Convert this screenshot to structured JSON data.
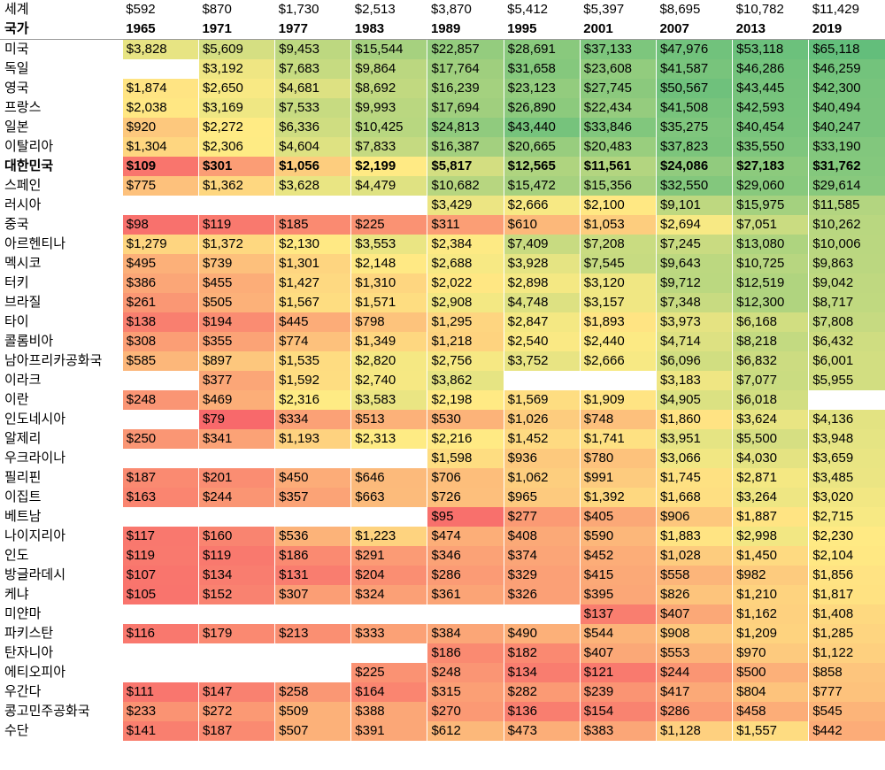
{
  "chart_data": {
    "type": "table",
    "title": "",
    "world_label": "세계",
    "country_header": "국가",
    "years": [
      "1965",
      "1971",
      "1977",
      "1983",
      "1989",
      "1995",
      "2001",
      "2007",
      "2013",
      "2019"
    ],
    "world": [
      "$592",
      "$870",
      "$1,730",
      "$2,513",
      "$3,870",
      "$5,412",
      "$5,397",
      "$8,695",
      "$10,782",
      "$11,429"
    ],
    "highlight_country": "대한민국",
    "rows": [
      {
        "country": "미국",
        "values": [
          3828,
          5609,
          9453,
          15544,
          22857,
          28691,
          37133,
          47976,
          53118,
          65118
        ]
      },
      {
        "country": "독일",
        "values": [
          null,
          3192,
          7683,
          9864,
          17764,
          31658,
          23608,
          41587,
          46286,
          46259
        ]
      },
      {
        "country": "영국",
        "values": [
          1874,
          2650,
          4681,
          8692,
          16239,
          23123,
          27745,
          50567,
          43445,
          42300
        ]
      },
      {
        "country": "프랑스",
        "values": [
          2038,
          3169,
          7533,
          9993,
          17694,
          26890,
          22434,
          41508,
          42593,
          40494
        ]
      },
      {
        "country": "일본",
        "values": [
          920,
          2272,
          6336,
          10425,
          24813,
          43440,
          33846,
          35275,
          40454,
          40247
        ]
      },
      {
        "country": "이탈리아",
        "values": [
          1304,
          2306,
          4604,
          7833,
          16387,
          20665,
          20483,
          37823,
          35550,
          33190
        ]
      },
      {
        "country": "대한민국",
        "values": [
          109,
          301,
          1056,
          2199,
          5817,
          12565,
          11561,
          24086,
          27183,
          31762
        ]
      },
      {
        "country": "스페인",
        "values": [
          775,
          1362,
          3628,
          4479,
          10682,
          15472,
          15356,
          32550,
          29060,
          29614
        ]
      },
      {
        "country": "러시아",
        "values": [
          null,
          null,
          null,
          null,
          3429,
          2666,
          2100,
          9101,
          15975,
          11585
        ]
      },
      {
        "country": "중국",
        "values": [
          98,
          119,
          185,
          225,
          311,
          610,
          1053,
          2694,
          7051,
          10262
        ]
      },
      {
        "country": "아르헨티나",
        "values": [
          1279,
          1372,
          2130,
          3553,
          2384,
          7409,
          7208,
          7245,
          13080,
          10006
        ]
      },
      {
        "country": "멕시코",
        "values": [
          495,
          739,
          1301,
          2148,
          2688,
          3928,
          7545,
          9643,
          10725,
          9863
        ]
      },
      {
        "country": "터키",
        "values": [
          386,
          455,
          1427,
          1310,
          2022,
          2898,
          3120,
          9712,
          12519,
          9042
        ]
      },
      {
        "country": "브라질",
        "values": [
          261,
          505,
          1567,
          1571,
          2908,
          4748,
          3157,
          7348,
          12300,
          8717
        ]
      },
      {
        "country": "타이",
        "values": [
          138,
          194,
          445,
          798,
          1295,
          2847,
          1893,
          3973,
          6168,
          7808
        ]
      },
      {
        "country": "콜롬비아",
        "values": [
          308,
          355,
          774,
          1349,
          1218,
          2540,
          2440,
          4714,
          8218,
          6432
        ]
      },
      {
        "country": "남아프리카공화국",
        "values": [
          585,
          897,
          1535,
          2820,
          2756,
          3752,
          2666,
          6096,
          6832,
          6001
        ]
      },
      {
        "country": "이라크",
        "values": [
          null,
          377,
          1592,
          2740,
          3862,
          null,
          null,
          3183,
          7077,
          5955
        ]
      },
      {
        "country": "이란",
        "values": [
          248,
          469,
          2316,
          3583,
          2198,
          1569,
          1909,
          4905,
          6018,
          null
        ]
      },
      {
        "country": "인도네시아",
        "values": [
          null,
          79,
          334,
          513,
          530,
          1026,
          748,
          1860,
          3624,
          4136
        ]
      },
      {
        "country": "알제리",
        "values": [
          250,
          341,
          1193,
          2313,
          2216,
          1452,
          1741,
          3951,
          5500,
          3948
        ]
      },
      {
        "country": "우크라이나",
        "values": [
          null,
          null,
          null,
          null,
          1598,
          936,
          780,
          3066,
          4030,
          3659
        ]
      },
      {
        "country": "필리핀",
        "values": [
          187,
          201,
          450,
          646,
          706,
          1062,
          991,
          1745,
          2871,
          3485
        ]
      },
      {
        "country": "이집트",
        "values": [
          163,
          244,
          357,
          663,
          726,
          965,
          1392,
          1668,
          3264,
          3020
        ]
      },
      {
        "country": "베트남",
        "values": [
          null,
          null,
          null,
          null,
          95,
          277,
          405,
          906,
          1887,
          2715
        ]
      },
      {
        "country": "나이지리아",
        "values": [
          117,
          160,
          536,
          1223,
          474,
          408,
          590,
          1883,
          2998,
          2230
        ]
      },
      {
        "country": "인도",
        "values": [
          119,
          119,
          186,
          291,
          346,
          374,
          452,
          1028,
          1450,
          2104
        ]
      },
      {
        "country": "방글라데시",
        "values": [
          107,
          134,
          131,
          204,
          286,
          329,
          415,
          558,
          982,
          1856
        ]
      },
      {
        "country": "케냐",
        "values": [
          105,
          152,
          307,
          324,
          361,
          326,
          395,
          826,
          1210,
          1817
        ]
      },
      {
        "country": "미얀마",
        "values": [
          null,
          null,
          null,
          null,
          null,
          null,
          137,
          407,
          1162,
          1408
        ]
      },
      {
        "country": "파키스탄",
        "values": [
          116,
          179,
          213,
          333,
          384,
          490,
          544,
          908,
          1209,
          1285
        ]
      },
      {
        "country": "탄자니아",
        "values": [
          null,
          null,
          null,
          null,
          186,
          182,
          407,
          553,
          970,
          1122
        ]
      },
      {
        "country": "에티오피아",
        "values": [
          null,
          null,
          null,
          225,
          248,
          134,
          121,
          244,
          500,
          858
        ]
      },
      {
        "country": "우간다",
        "values": [
          111,
          147,
          258,
          164,
          315,
          282,
          239,
          417,
          804,
          777
        ]
      },
      {
        "country": "콩고민주공화국",
        "values": [
          233,
          272,
          509,
          388,
          270,
          136,
          154,
          286,
          458,
          545
        ]
      },
      {
        "country": "수단",
        "values": [
          141,
          187,
          507,
          391,
          612,
          473,
          383,
          1128,
          1557,
          442
        ]
      }
    ]
  },
  "colors": {
    "low": "#f8696b",
    "mid": "#ffeb84",
    "high": "#63be7b",
    "empty": "#ffffff"
  }
}
